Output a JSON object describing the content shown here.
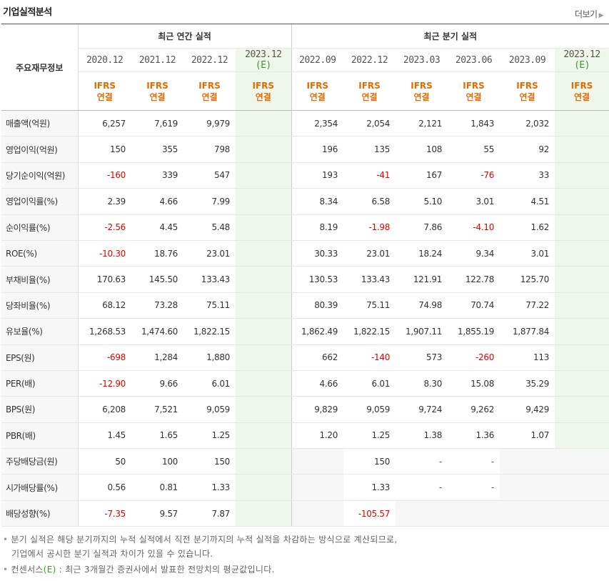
{
  "title": "기업실적분석",
  "more_label": "더보기",
  "corner_label": "주요재무정보",
  "group_annual": "최근 연간 실적",
  "group_quarter": "최근 분기 실적",
  "periods": [
    {
      "label": "2020.12",
      "est": ""
    },
    {
      "label": "2021.12",
      "est": ""
    },
    {
      "label": "2022.12",
      "est": ""
    },
    {
      "label": "2023.12",
      "est": "(E)"
    },
    {
      "label": "2022.09",
      "est": ""
    },
    {
      "label": "2022.12",
      "est": ""
    },
    {
      "label": "2023.03",
      "est": ""
    },
    {
      "label": "2023.06",
      "est": ""
    },
    {
      "label": "2023.09",
      "est": ""
    },
    {
      "label": "2023.12",
      "est": "(E)"
    }
  ],
  "basis_line1": "IFRS",
  "basis_line2": "연결",
  "rows": [
    {
      "label": "매출액(억원)",
      "group_start": true,
      "cells": [
        "6,257",
        "7,619",
        "9,979",
        "",
        "2,354",
        "2,054",
        "2,121",
        "1,843",
        "2,032",
        ""
      ]
    },
    {
      "label": "영업이익(억원)",
      "cells": [
        "150",
        "355",
        "798",
        "",
        "196",
        "135",
        "108",
        "55",
        "92",
        ""
      ]
    },
    {
      "label": "당기순이익(억원)",
      "cells": [
        "-160",
        "339",
        "547",
        "",
        "193",
        "-41",
        "167",
        "-76",
        "33",
        ""
      ]
    },
    {
      "label": "영업이익률(%)",
      "group_start": true,
      "cells": [
        "2.39",
        "4.66",
        "7.99",
        "",
        "8.34",
        "6.58",
        "5.10",
        "3.01",
        "4.51",
        ""
      ]
    },
    {
      "label": "순이익률(%)",
      "cells": [
        "-2.56",
        "4.45",
        "5.48",
        "",
        "8.19",
        "-1.98",
        "7.86",
        "-4.10",
        "1.62",
        ""
      ]
    },
    {
      "label": "ROE(%)",
      "cells": [
        "-10.30",
        "18.76",
        "23.01",
        "",
        "30.33",
        "23.01",
        "18.24",
        "9.34",
        "3.01",
        ""
      ]
    },
    {
      "label": "부채비율(%)",
      "group_start": true,
      "cells": [
        "170.63",
        "145.50",
        "133.43",
        "",
        "130.53",
        "133.43",
        "121.91",
        "122.78",
        "125.70",
        ""
      ]
    },
    {
      "label": "당좌비율(%)",
      "cells": [
        "68.12",
        "73.28",
        "75.11",
        "",
        "80.39",
        "75.11",
        "74.98",
        "70.74",
        "77.22",
        ""
      ]
    },
    {
      "label": "유보율(%)",
      "cells": [
        "1,268.53",
        "1,474.60",
        "1,822.15",
        "",
        "1,862.49",
        "1,822.15",
        "1,907.11",
        "1,855.19",
        "1,877.84",
        ""
      ]
    },
    {
      "label": "EPS(원)",
      "group_start": true,
      "cells": [
        "-698",
        "1,284",
        "1,880",
        "",
        "662",
        "-140",
        "573",
        "-260",
        "113",
        ""
      ]
    },
    {
      "label": "PER(배)",
      "cells": [
        "-12.90",
        "9.66",
        "6.01",
        "",
        "4.66",
        "6.01",
        "8.30",
        "15.08",
        "35.29",
        ""
      ]
    },
    {
      "label": "BPS(원)",
      "cells": [
        "6,208",
        "7,521",
        "9,059",
        "",
        "9,829",
        "9,059",
        "9,724",
        "9,262",
        "9,429",
        ""
      ]
    },
    {
      "label": "PBR(배)",
      "cells": [
        "1.45",
        "1.65",
        "1.25",
        "",
        "1.20",
        "1.25",
        "1.38",
        "1.36",
        "1.07",
        ""
      ]
    },
    {
      "label": "주당배당금(원)",
      "group_start": true,
      "gray": [
        4,
        8,
        9
      ],
      "cells": [
        "50",
        "100",
        "150",
        "",
        "",
        "150",
        "-",
        "-",
        "",
        ""
      ]
    },
    {
      "label": "시가배당률(%)",
      "gray": [
        4,
        8,
        9
      ],
      "cells": [
        "0.56",
        "0.81",
        "1.33",
        "",
        "",
        "1.33",
        "-",
        "-",
        "",
        ""
      ]
    },
    {
      "label": "배당성향(%)",
      "gray": [
        4,
        6,
        7,
        8,
        9
      ],
      "cells": [
        "-7.35",
        "9.57",
        "7.87",
        "",
        "",
        "-105.57",
        "",
        "",
        "",
        ""
      ]
    }
  ],
  "notes": {
    "n1_line1": "분기 실적은 해당 분기까지의 누적 실적에서 직전 분기까지의 누적 실적을 차감하는 방식으로 계산되므로,",
    "n1_line2": "기업에서 공시한 분기 실적과 차이가 있을 수 있습니다.",
    "n2_prefix": "컨센서스",
    "n2_e": "(E)",
    "n2_rest": ": 최근 3개월간 증권사에서 발표한 전망치의 평균값입니다."
  },
  "colors": {
    "negative": "#e60000",
    "basis": "#e56b00",
    "estimate_bg": "#eff7ec",
    "estimate_text": "#3a9b2a"
  }
}
